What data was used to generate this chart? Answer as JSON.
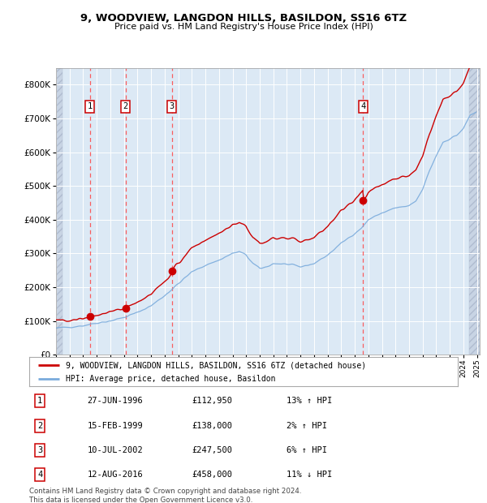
{
  "title": "9, WOODVIEW, LANGDON HILLS, BASILDON, SS16 6TZ",
  "subtitle": "Price paid vs. HM Land Registry's House Price Index (HPI)",
  "ylim": [
    0,
    850000
  ],
  "yticks": [
    0,
    100000,
    200000,
    300000,
    400000,
    500000,
    600000,
    700000,
    800000
  ],
  "ytick_labels": [
    "£0",
    "£100K",
    "£200K",
    "£300K",
    "£400K",
    "£500K",
    "£600K",
    "£700K",
    "£800K"
  ],
  "xlim_start": 1994.0,
  "xlim_end": 2025.2,
  "background_color": "#ffffff",
  "plot_bg_color": "#dce9f5",
  "grid_color": "#ffffff",
  "sale_dates": [
    1996.49,
    1999.12,
    2002.53,
    2016.62
  ],
  "sale_prices": [
    112950,
    138000,
    247500,
    458000
  ],
  "sale_labels": [
    "1",
    "2",
    "3",
    "4"
  ],
  "legend_line1": "9, WOODVIEW, LANGDON HILLS, BASILDON, SS16 6TZ (detached house)",
  "legend_line2": "HPI: Average price, detached house, Basildon",
  "table_data": [
    [
      "1",
      "27-JUN-1996",
      "£112,950",
      "13% ↑ HPI"
    ],
    [
      "2",
      "15-FEB-1999",
      "£138,000",
      "2% ↑ HPI"
    ],
    [
      "3",
      "10-JUL-2002",
      "£247,500",
      "6% ↑ HPI"
    ],
    [
      "4",
      "12-AUG-2016",
      "£458,000",
      "11% ↓ HPI"
    ]
  ],
  "footer": "Contains HM Land Registry data © Crown copyright and database right 2024.\nThis data is licensed under the Open Government Licence v3.0.",
  "property_line_color": "#cc0000",
  "hpi_line_color": "#7aabdc",
  "sale_marker_color": "#cc0000",
  "sale_vline_color": "#ff4444"
}
